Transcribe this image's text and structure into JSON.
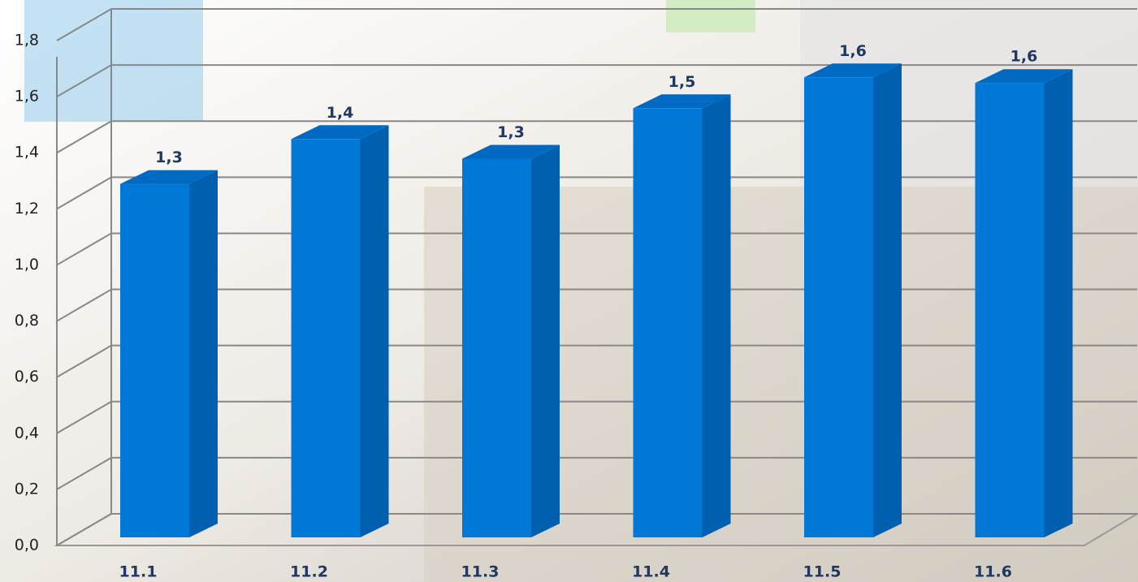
{
  "chart_data": {
    "type": "bar3d",
    "categories": [
      "11.1",
      "11.2",
      "11.3",
      "11.4",
      "11.5",
      "11.6"
    ],
    "values": [
      1.26,
      1.42,
      1.35,
      1.53,
      1.64,
      1.62
    ],
    "value_labels": [
      "1,3",
      "1,4",
      "1,3",
      "1,5",
      "1,6",
      "1,6"
    ],
    "color": "#0078d7",
    "ylim": [
      0,
      1.8
    ],
    "yticks": [
      {
        "value": 0,
        "label": "0,0"
      },
      {
        "value": 0.2,
        "label": "0,2"
      },
      {
        "value": 0.4,
        "label": "0,4"
      },
      {
        "value": 0.6,
        "label": "0,6"
      },
      {
        "value": 0.8,
        "label": "0,8"
      },
      {
        "value": 1.0,
        "label": "1,0"
      },
      {
        "value": 1.2,
        "label": "1,2"
      },
      {
        "value": 1.4,
        "label": "1,4"
      },
      {
        "value": 1.6,
        "label": "1,6"
      },
      {
        "value": 1.8,
        "label": "1,8"
      }
    ],
    "grid": true
  }
}
